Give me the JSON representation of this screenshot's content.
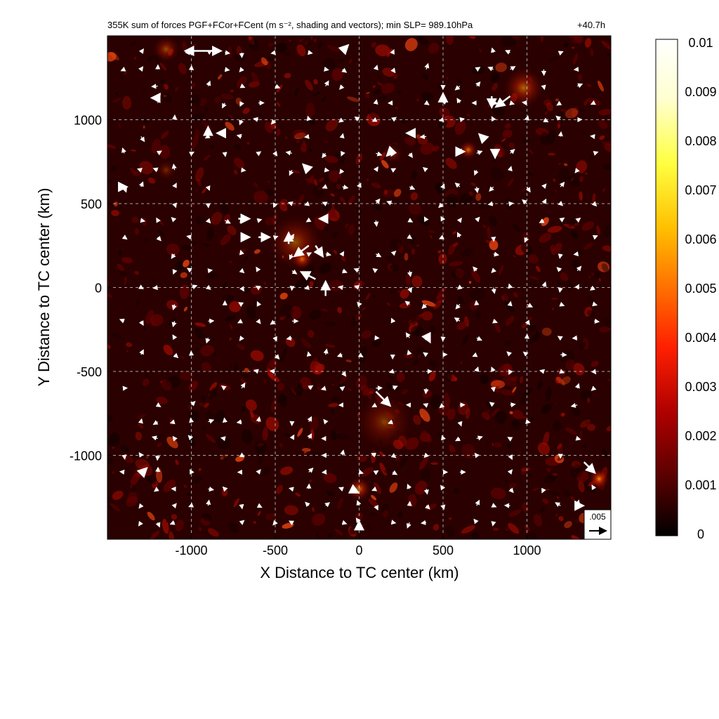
{
  "chart_data": {
    "type": "heatmap",
    "title": "355K sum of forces PGF+FCor+FCent (m s⁻², shading and vectors); min SLP= 989.10hPa",
    "forecast_time": "+40.7h",
    "xlabel": "X Distance to TC center (km)",
    "ylabel": "Y Distance to TC center (km)",
    "xlim": [
      -1500,
      1500
    ],
    "ylim": [
      -1500,
      1500
    ],
    "xticks": [
      -1000,
      -500,
      0,
      500,
      1000
    ],
    "yticks": [
      -1000,
      -500,
      0,
      500,
      1000
    ],
    "grid": "dashed",
    "colorbar": {
      "min": 0,
      "max": 0.01,
      "ticks": [
        "0",
        "0.001",
        "0.002",
        "0.003",
        "0.004",
        "0.005",
        "0.006",
        "0.007",
        "0.008",
        "0.009",
        "0.01"
      ],
      "colormap": [
        "#000000",
        "#5a0000",
        "#b00000",
        "#ff2000",
        "#ff7000",
        "#ffc000",
        "#ffff40",
        "#ffffd0",
        "#ffffff"
      ]
    },
    "reference_vector": {
      "label": ".005",
      "value": 0.005
    },
    "hotspots": [
      {
        "x": -340,
        "y": 170,
        "v": 0.0065,
        "r": 60
      },
      {
        "x": -380,
        "y": 270,
        "v": 0.004,
        "r": 160
      },
      {
        "x": 650,
        "y": 820,
        "v": 0.006,
        "r": 55
      },
      {
        "x": 980,
        "y": 1190,
        "v": 0.005,
        "r": 120
      },
      {
        "x": 0,
        "y": -1200,
        "v": 0.006,
        "r": 70
      },
      {
        "x": 1430,
        "y": -1140,
        "v": 0.009,
        "r": 60
      },
      {
        "x": -1150,
        "y": 1420,
        "v": 0.004,
        "r": 80
      },
      {
        "x": 150,
        "y": -800,
        "v": 0.003,
        "r": 170
      },
      {
        "x": 200,
        "y": 800,
        "v": 0.003,
        "r": 60
      },
      {
        "x": -1150,
        "y": 700,
        "v": 0.0025,
        "r": 60
      },
      {
        "x": -1300,
        "y": -1100,
        "v": 0.003,
        "r": 50
      }
    ],
    "vectors": [
      {
        "x": -950,
        "y": 1410,
        "u": 0.006,
        "v": 0.0
      },
      {
        "x": -950,
        "y": 1410,
        "u": -0.004,
        "v": 0.0
      },
      {
        "x": 900,
        "y": 1140,
        "u": -0.004,
        "v": -0.003
      },
      {
        "x": 790,
        "y": 1140,
        "u": 0.0,
        "v": -0.003
      },
      {
        "x": -720,
        "y": 410,
        "u": 0.003,
        "v": 0.0
      },
      {
        "x": -700,
        "y": 300,
        "u": 0.002,
        "v": 0.0
      },
      {
        "x": -600,
        "y": 300,
        "u": 0.003,
        "v": 0.0
      },
      {
        "x": -420,
        "y": 260,
        "u": 0.0,
        "v": 0.003
      },
      {
        "x": -300,
        "y": 250,
        "u": -0.004,
        "v": -0.003
      },
      {
        "x": -260,
        "y": 250,
        "u": 0.002,
        "v": -0.003
      },
      {
        "x": -260,
        "y": 50,
        "u": -0.004,
        "v": 0.002
      },
      {
        "x": -200,
        "y": -50,
        "u": 0.0,
        "v": 0.004
      },
      {
        "x": 100,
        "y": -620,
        "u": 0.004,
        "v": -0.004
      },
      {
        "x": 1340,
        "y": -1040,
        "u": 0.003,
        "v": -0.003
      },
      {
        "x": 400,
        "y": -280,
        "u": 0.001,
        "v": -0.002
      },
      {
        "x": -800,
        "y": 920,
        "u": -0.002,
        "v": 0.0
      },
      {
        "x": -900,
        "y": 920,
        "u": 0.0,
        "v": 0.0015
      },
      {
        "x": -1430,
        "y": 600,
        "u": 0.002,
        "v": 0.0
      },
      {
        "x": -300,
        "y": 700,
        "u": -0.0015,
        "v": 0.0015
      },
      {
        "x": -200,
        "y": 410,
        "u": -0.0015,
        "v": 0.0
      },
      {
        "x": -1200,
        "y": 1130,
        "u": -0.0015,
        "v": 0.0
      },
      {
        "x": 750,
        "y": 880,
        "u": -0.0015,
        "v": 0.0015
      },
      {
        "x": 810,
        "y": 820,
        "u": 0.0,
        "v": -0.002
      },
      {
        "x": 330,
        "y": 920,
        "u": -0.002,
        "v": 0.0
      },
      {
        "x": 580,
        "y": 810,
        "u": 0.002,
        "v": 0.0
      },
      {
        "x": -1300,
        "y": -1110,
        "u": 0.0015,
        "v": 0.0015
      },
      {
        "x": -50,
        "y": -1200,
        "u": 0.002,
        "v": -0.001
      },
      {
        "x": 0,
        "y": -1440,
        "u": 0.0,
        "v": 0.002
      },
      {
        "x": 200,
        "y": 820,
        "u": -0.0015,
        "v": -0.0015
      },
      {
        "x": -100,
        "y": 1410,
        "u": 0.0015,
        "v": 0.0015
      },
      {
        "x": 500,
        "y": 1120,
        "u": 0.0,
        "v": 0.0015
      },
      {
        "x": 1300,
        "y": -1300,
        "u": 0.0015,
        "v": 0.0
      }
    ]
  }
}
